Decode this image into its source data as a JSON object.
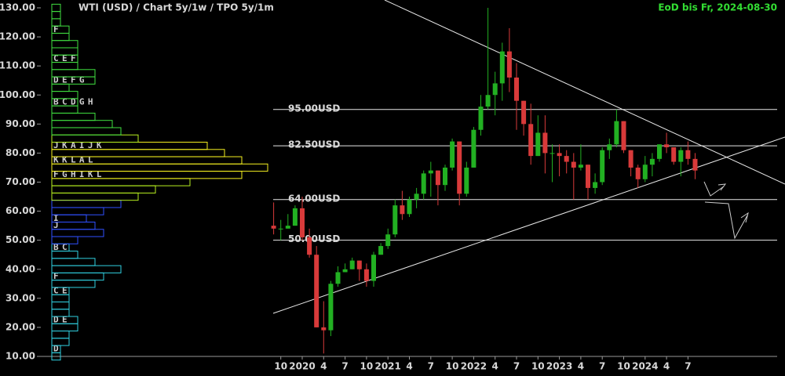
{
  "chart_data": {
    "type": "candlestick",
    "title": "WTI (USD) /  Chart 5y/1w / TPO 5y/1m",
    "subtitle": "EoD bis Fr, 2024-08-30",
    "up_color": "#22b022",
    "down_color": "#d83a3a",
    "x": [
      "2019-09",
      "2019-10",
      "2019-11",
      "2019-12",
      "2020-01",
      "2020-02",
      "2020-03",
      "2020-04",
      "2020-05",
      "2020-06",
      "2020-07",
      "2020-08",
      "2020-09",
      "2020-10",
      "2020-11",
      "2020-12",
      "2021-01",
      "2021-02",
      "2021-03",
      "2021-04",
      "2021-05",
      "2021-06",
      "2021-07",
      "2021-08",
      "2021-09",
      "2021-10",
      "2021-11",
      "2021-12",
      "2022-01",
      "2022-02",
      "2022-03",
      "2022-04",
      "2022-05",
      "2022-06",
      "2022-07",
      "2022-08",
      "2022-09",
      "2022-10",
      "2022-11",
      "2022-12",
      "2023-01",
      "2023-02",
      "2023-03",
      "2023-04",
      "2023-05",
      "2023-06",
      "2023-07",
      "2023-08",
      "2023-09",
      "2023-10",
      "2023-11",
      "2023-12",
      "2024-01",
      "2024-02",
      "2024-03",
      "2024-04",
      "2024-05",
      "2024-06",
      "2024-07",
      "2024-08"
    ],
    "open": [
      55,
      54,
      54,
      55,
      61,
      51,
      45,
      20,
      19,
      35,
      39,
      40,
      43,
      40,
      36,
      45,
      48,
      52,
      62,
      59,
      64,
      66,
      73,
      74,
      69,
      75,
      84,
      66,
      75,
      88,
      96,
      100,
      104,
      115,
      106,
      98,
      90,
      79,
      87,
      80,
      80,
      79,
      77,
      75,
      76,
      68,
      70,
      81,
      83,
      91,
      81,
      75,
      71,
      76,
      78,
      83,
      82,
      77,
      81,
      78
    ],
    "high": [
      63,
      57,
      59,
      62,
      65,
      54,
      48,
      29,
      36,
      41,
      42,
      44,
      43,
      42,
      46,
      49,
      54,
      64,
      67,
      65,
      68,
      74,
      77,
      74,
      76,
      85,
      84,
      77,
      89,
      100,
      130,
      108,
      118,
      123,
      111,
      98,
      97,
      93,
      93,
      83,
      83,
      81,
      80,
      83,
      76,
      73,
      82,
      85,
      95,
      91,
      81,
      76,
      79,
      80,
      83,
      87,
      82,
      82,
      84,
      80
    ],
    "low": [
      52,
      50,
      54,
      55,
      50,
      44,
      20,
      11,
      17,
      34,
      39,
      40,
      36,
      34,
      34,
      45,
      47,
      51,
      57,
      58,
      61,
      64,
      65,
      62,
      67,
      74,
      62,
      65,
      75,
      86,
      95,
      93,
      98,
      101,
      88,
      86,
      76,
      79,
      73,
      70,
      72,
      73,
      64,
      74,
      64,
      66,
      69,
      78,
      82,
      80,
      72,
      68,
      70,
      72,
      77,
      80,
      76,
      72,
      76,
      71
    ],
    "close": [
      54,
      54,
      55,
      61,
      51,
      45,
      20,
      19,
      35,
      39,
      40,
      43,
      40,
      36,
      45,
      48,
      52,
      62,
      59,
      64,
      66,
      73,
      74,
      69,
      75,
      84,
      66,
      75,
      88,
      96,
      100,
      104,
      115,
      106,
      98,
      90,
      79,
      87,
      80,
      80,
      79,
      77,
      75,
      76,
      68,
      70,
      81,
      83,
      91,
      81,
      75,
      71,
      76,
      78,
      83,
      82,
      77,
      81,
      78,
      74
    ],
    "xticks": [
      {
        "value": "2019-10",
        "label": "10"
      },
      {
        "value": "2020-01",
        "label": "2020"
      },
      {
        "value": "2020-04",
        "label": "4"
      },
      {
        "value": "2020-07",
        "label": "7"
      },
      {
        "value": "2020-10",
        "label": "10"
      },
      {
        "value": "2021-01",
        "label": "2021"
      },
      {
        "value": "2021-04",
        "label": "4"
      },
      {
        "value": "2021-07",
        "label": "7"
      },
      {
        "value": "2021-10",
        "label": "10"
      },
      {
        "value": "2022-01",
        "label": "2022"
      },
      {
        "value": "2022-04",
        "label": "4"
      },
      {
        "value": "2022-07",
        "label": "7"
      },
      {
        "value": "2022-10",
        "label": "10"
      },
      {
        "value": "2023-01",
        "label": "2023"
      },
      {
        "value": "2023-04",
        "label": "4"
      },
      {
        "value": "2023-07",
        "label": "7"
      },
      {
        "value": "2023-10",
        "label": "10"
      },
      {
        "value": "2024-01",
        "label": "2024"
      },
      {
        "value": "2024-04",
        "label": "4"
      },
      {
        "value": "2024-07",
        "label": "7"
      }
    ],
    "ylim": [
      10,
      130
    ],
    "yticks": [
      {
        "value": 10,
        "label": "10.00"
      },
      {
        "value": 20,
        "label": "20.00"
      },
      {
        "value": 30,
        "label": "30.00"
      },
      {
        "value": 40,
        "label": "40.00"
      },
      {
        "value": 50,
        "label": "50.00"
      },
      {
        "value": 60,
        "label": "60.00"
      },
      {
        "value": 70,
        "label": "70.00"
      },
      {
        "value": 80,
        "label": "80.00"
      },
      {
        "value": 90,
        "label": "90.00"
      },
      {
        "value": 100,
        "label": "100.00"
      },
      {
        "value": 110,
        "label": "110.00"
      },
      {
        "value": 120,
        "label": "120.00"
      },
      {
        "value": 130,
        "label": "130.00"
      }
    ],
    "levels": [
      {
        "value": 95,
        "label": "95.00USD"
      },
      {
        "value": 82.5,
        "label": "82.50USD"
      },
      {
        "value": 64,
        "label": "64.00USD"
      },
      {
        "value": 50,
        "label": "50.00USD"
      }
    ],
    "tpo_rows": [
      {
        "price": 10,
        "count": 1
      },
      {
        "price": 12.5,
        "count": 1,
        "letters": "D"
      },
      {
        "price": 15,
        "count": 2
      },
      {
        "price": 17.5,
        "count": 2
      },
      {
        "price": 20,
        "count": 3
      },
      {
        "price": 22.5,
        "count": 3,
        "letters": "DE"
      },
      {
        "price": 25,
        "count": 2
      },
      {
        "price": 27.5,
        "count": 2
      },
      {
        "price": 30,
        "count": 2
      },
      {
        "price": 32.5,
        "count": 2,
        "letters": "CE"
      },
      {
        "price": 35,
        "count": 5
      },
      {
        "price": 37.5,
        "count": 6,
        "letters": "F"
      },
      {
        "price": 40,
        "count": 8
      },
      {
        "price": 42.5,
        "count": 5
      },
      {
        "price": 45,
        "count": 3
      },
      {
        "price": 47.5,
        "count": 2,
        "letters": "BC"
      },
      {
        "price": 50,
        "count": 3
      },
      {
        "price": 52.5,
        "count": 6
      },
      {
        "price": 55,
        "count": 5,
        "letters": "J"
      },
      {
        "price": 57.5,
        "count": 4,
        "letters": "I"
      },
      {
        "price": 60,
        "count": 6
      },
      {
        "price": 62.5,
        "count": 8
      },
      {
        "price": 65,
        "count": 10
      },
      {
        "price": 67.5,
        "count": 12
      },
      {
        "price": 70,
        "count": 16
      },
      {
        "price": 72.5,
        "count": 22,
        "letters": "FGHIKL"
      },
      {
        "price": 75,
        "count": 25
      },
      {
        "price": 77.5,
        "count": 22,
        "letters": "KKLAL"
      },
      {
        "price": 80,
        "count": 20
      },
      {
        "price": 82.5,
        "count": 18,
        "letters": "JKAIJK"
      },
      {
        "price": 85,
        "count": 10
      },
      {
        "price": 87.5,
        "count": 8
      },
      {
        "price": 90,
        "count": 7
      },
      {
        "price": 92.5,
        "count": 5
      },
      {
        "price": 95,
        "count": 3
      },
      {
        "price": 97.5,
        "count": 3,
        "letters": "BCDGH"
      },
      {
        "price": 100,
        "count": 3
      },
      {
        "price": 102.5,
        "count": 2
      },
      {
        "price": 105,
        "count": 5,
        "letters": "DEFG"
      },
      {
        "price": 107.5,
        "count": 5
      },
      {
        "price": 110,
        "count": 3
      },
      {
        "price": 112.5,
        "count": 3,
        "letters": "CEF"
      },
      {
        "price": 115,
        "count": 3
      },
      {
        "price": 117.5,
        "count": 3
      },
      {
        "price": 120,
        "count": 2
      },
      {
        "price": 122.5,
        "count": 2,
        "letters": "F"
      },
      {
        "price": 125,
        "count": 1
      },
      {
        "price": 127.5,
        "count": 1
      },
      {
        "price": 130,
        "count": 1
      }
    ]
  }
}
